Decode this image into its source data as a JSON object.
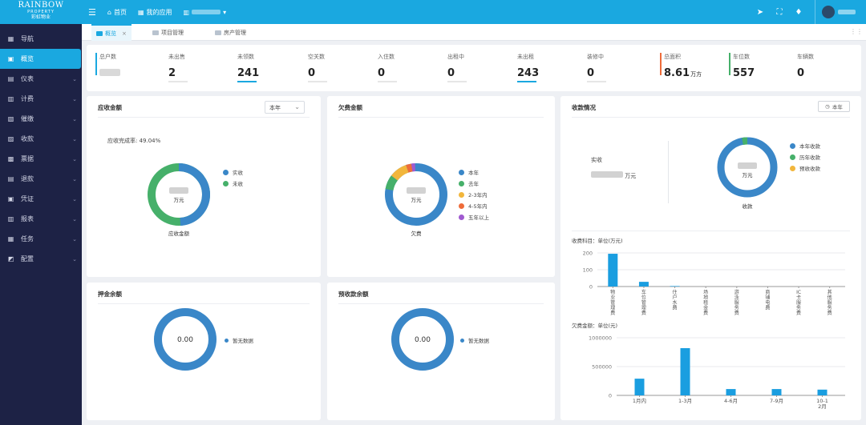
{
  "logo": {
    "line1": "RAINBOW",
    "line2": "PROPERTY",
    "line3": "彩虹物业"
  },
  "topnav": {
    "home": "首页",
    "apps": "我的应用",
    "org_suffix": "▾"
  },
  "sidebar": {
    "items": [
      {
        "label": "导航",
        "icon": "grid-icon"
      },
      {
        "label": "概览",
        "icon": "dashboard-icon"
      },
      {
        "label": "仪表",
        "icon": "meter-icon"
      },
      {
        "label": "计费",
        "icon": "billing-icon"
      },
      {
        "label": "催缴",
        "icon": "reminder-icon"
      },
      {
        "label": "收款",
        "icon": "receive-icon"
      },
      {
        "label": "票据",
        "icon": "receipt-icon"
      },
      {
        "label": "退款",
        "icon": "refund-icon"
      },
      {
        "label": "凭证",
        "icon": "voucher-icon"
      },
      {
        "label": "报表",
        "icon": "report-icon"
      },
      {
        "label": "任务",
        "icon": "task-icon"
      },
      {
        "label": "配置",
        "icon": "config-icon"
      }
    ]
  },
  "tabs": [
    {
      "label": "概览",
      "active": true,
      "close": "×"
    },
    {
      "label": "项目管理",
      "active": false
    },
    {
      "label": "房产管理",
      "active": false
    }
  ],
  "stats": [
    {
      "label": "总户数",
      "value": ""
    },
    {
      "label": "未出售",
      "value": "2"
    },
    {
      "label": "未领数",
      "value": "241"
    },
    {
      "label": "空关数",
      "value": "0"
    },
    {
      "label": "入住数",
      "value": "0"
    },
    {
      "label": "出租中",
      "value": "0"
    },
    {
      "label": "未出租",
      "value": "243"
    },
    {
      "label": "装修中",
      "value": "0"
    },
    {
      "label": "总面积",
      "value": "8.61",
      "unit": "万方"
    },
    {
      "label": "车位数",
      "value": "557"
    },
    {
      "label": "车辆数",
      "value": "0"
    }
  ],
  "receivable": {
    "title": "应收金额",
    "select": "本年",
    "rate_text": "应收完成率: 49.04%",
    "center_unit": "万元",
    "caption": "应收金额",
    "legend": [
      {
        "label": "实收",
        "color": "#3a87c8"
      },
      {
        "label": "未收",
        "color": "#46b06a"
      }
    ]
  },
  "arrears": {
    "title": "欠费金额",
    "center_unit": "万元",
    "caption": "欠费",
    "legend": [
      {
        "label": "本年",
        "color": "#3a87c8"
      },
      {
        "label": "去年",
        "color": "#46b06a"
      },
      {
        "label": "2-3年内",
        "color": "#f2b63c"
      },
      {
        "label": "4-5年内",
        "color": "#ee6c3a"
      },
      {
        "label": "五年以上",
        "color": "#a05ad0"
      }
    ]
  },
  "collection": {
    "title": "收款情况",
    "year_btn": "本年",
    "actual_label": "实收",
    "actual_unit": "万元",
    "center_unit": "万元",
    "caption": "收款",
    "legend": [
      {
        "label": "本年收款",
        "color": "#3a87c8"
      },
      {
        "label": "历年收款",
        "color": "#46b06a"
      },
      {
        "label": "预收收款",
        "color": "#f2b63c"
      }
    ]
  },
  "deposit": {
    "title": "押金余额",
    "center": "0.00",
    "legend": "暂无数据"
  },
  "prepaid": {
    "title": "预收款余额",
    "center": "0.00",
    "legend": "暂无数据"
  },
  "chart_data": [
    {
      "type": "bar",
      "title": "收费科目：单位(万元)",
      "categories": [
        "物业管理费",
        "车位管理费",
        "住户水费",
        "场地租金费",
        "游泳服务费",
        "商铺电费",
        "IC卡服务费",
        "其他服务费"
      ],
      "values": [
        195,
        28,
        3,
        0,
        0,
        0,
        0,
        0
      ],
      "ylim": [
        0,
        200
      ],
      "yticks": [
        "0",
        "100",
        "200"
      ],
      "color": "#1a9ee0"
    },
    {
      "type": "bar",
      "title": "欠费金额：单位(元)",
      "categories": [
        "1月内",
        "1-3月",
        "4-6月",
        "7-9月",
        "10-12月"
      ],
      "values": [
        290000,
        820000,
        110000,
        110000,
        100000
      ],
      "ylim": [
        0,
        1000000
      ],
      "yticks": [
        "0",
        "500000",
        "1000000"
      ],
      "color": "#1a9ee0"
    }
  ]
}
